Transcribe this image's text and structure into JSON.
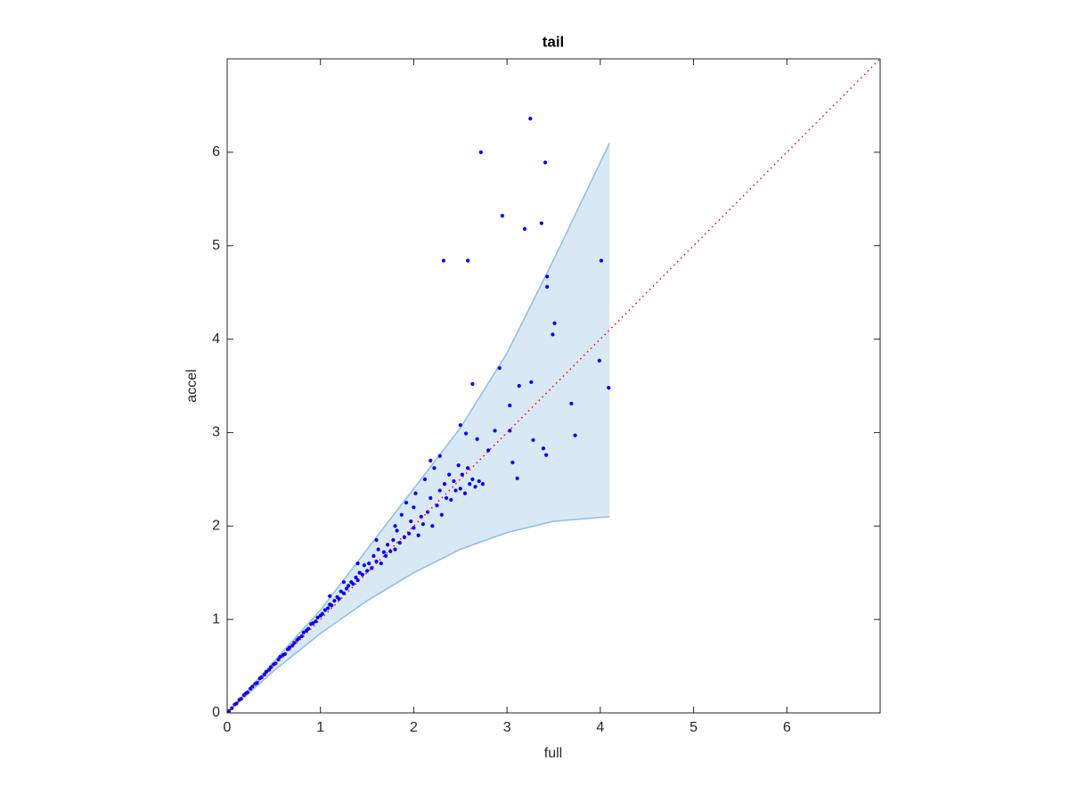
{
  "chart_data": {
    "type": "scatter",
    "title": "tail",
    "xlabel": "full",
    "ylabel": "accel",
    "xlim": [
      0,
      7
    ],
    "ylim": [
      0,
      7
    ],
    "xticks": [
      0,
      1,
      2,
      3,
      4,
      5,
      6
    ],
    "yticks": [
      0,
      1,
      2,
      3,
      4,
      5,
      6
    ],
    "band": {
      "color": "#d9e8f5",
      "edge_color": "#8dbfe2",
      "x": [
        0,
        0.5,
        1,
        1.5,
        2,
        2.5,
        3,
        3.5,
        4.1
      ],
      "upper": [
        0,
        0.55,
        1.1,
        1.75,
        2.4,
        3.05,
        3.85,
        4.85,
        6.1
      ],
      "lower": [
        0,
        0.45,
        0.85,
        1.2,
        1.5,
        1.75,
        1.93,
        2.05,
        2.1
      ]
    },
    "reference_line": {
      "color": "#ff0000",
      "x": [
        0,
        7
      ],
      "y": [
        0,
        7
      ]
    },
    "points": {
      "color": "#0000ff",
      "x": [
        0.02,
        0.05,
        0.08,
        0.1,
        0.13,
        0.15,
        0.18,
        0.2,
        0.22,
        0.25,
        0.27,
        0.3,
        0.32,
        0.35,
        0.37,
        0.4,
        0.42,
        0.45,
        0.47,
        0.5,
        0.52,
        0.55,
        0.57,
        0.6,
        0.62,
        0.65,
        0.67,
        0.7,
        0.72,
        0.75,
        0.77,
        0.8,
        0.82,
        0.85,
        0.87,
        0.9,
        0.92,
        0.95,
        0.97,
        1.0,
        1.02,
        1.05,
        1.08,
        1.1,
        1.12,
        1.15,
        1.18,
        1.2,
        1.22,
        1.25,
        1.28,
        1.3,
        1.33,
        1.35,
        1.38,
        1.4,
        1.42,
        1.45,
        1.47,
        1.5,
        1.52,
        1.55,
        1.57,
        1.6,
        1.62,
        1.65,
        1.68,
        1.7,
        1.72,
        1.75,
        1.78,
        1.8,
        1.82,
        1.85,
        1.87,
        1.9,
        1.92,
        1.95,
        1.97,
        2.0,
        2.02,
        2.05,
        2.08,
        2.1,
        2.12,
        2.15,
        2.18,
        2.2,
        2.22,
        2.25,
        2.28,
        2.3,
        2.33,
        2.35,
        2.38,
        2.4,
        2.43,
        2.45,
        2.48,
        2.5,
        2.52,
        2.55,
        2.58,
        2.6,
        2.63,
        2.66,
        2.7,
        2.74,
        2.18,
        2.28,
        1.4,
        1.6,
        1.8,
        2.0,
        1.25,
        1.1,
        3.25,
        2.72,
        3.41,
        2.95,
        3.37,
        3.19,
        2.32,
        2.58,
        4.01,
        4.09,
        3.99,
        3.43,
        3.43,
        3.51,
        3.49,
        2.92,
        2.63,
        3.26,
        3.13,
        3.03,
        3.69,
        3.73,
        2.5,
        2.87,
        3.03,
        3.28,
        3.39,
        3.42,
        3.06,
        3.11,
        2.68,
        2.56,
        2.8
      ],
      "y": [
        0.02,
        0.05,
        0.09,
        0.1,
        0.14,
        0.15,
        0.19,
        0.21,
        0.22,
        0.26,
        0.28,
        0.31,
        0.32,
        0.37,
        0.38,
        0.41,
        0.44,
        0.46,
        0.49,
        0.52,
        0.53,
        0.57,
        0.6,
        0.62,
        0.63,
        0.68,
        0.7,
        0.72,
        0.75,
        0.78,
        0.8,
        0.82,
        0.86,
        0.88,
        0.9,
        0.95,
        0.96,
        0.98,
        1.02,
        1.04,
        1.06,
        1.1,
        1.12,
        1.16,
        1.15,
        1.2,
        1.24,
        1.22,
        1.3,
        1.28,
        1.33,
        1.36,
        1.4,
        1.38,
        1.45,
        1.42,
        1.5,
        1.48,
        1.58,
        1.52,
        1.6,
        1.55,
        1.68,
        1.62,
        1.75,
        1.6,
        1.72,
        1.68,
        1.8,
        1.73,
        1.85,
        1.75,
        1.95,
        1.82,
        2.12,
        1.88,
        2.25,
        1.92,
        2.05,
        1.98,
        2.35,
        1.9,
        2.1,
        2.02,
        2.5,
        2.15,
        2.3,
        2.0,
        2.62,
        2.22,
        2.38,
        2.12,
        2.45,
        2.3,
        2.55,
        2.28,
        2.48,
        2.38,
        2.65,
        2.4,
        2.55,
        2.35,
        2.62,
        2.45,
        2.5,
        2.42,
        2.48,
        2.45,
        2.7,
        2.75,
        1.6,
        1.85,
        2.0,
        2.2,
        1.4,
        1.25,
        6.36,
        6.0,
        5.89,
        5.32,
        5.24,
        5.18,
        4.84,
        4.84,
        4.84,
        3.48,
        3.77,
        4.67,
        4.56,
        4.17,
        4.05,
        3.69,
        3.52,
        3.54,
        3.5,
        3.29,
        3.31,
        2.97,
        3.08,
        3.02,
        3.02,
        2.92,
        2.83,
        2.76,
        2.68,
        2.51,
        2.93,
        2.99,
        2.81
      ]
    }
  }
}
